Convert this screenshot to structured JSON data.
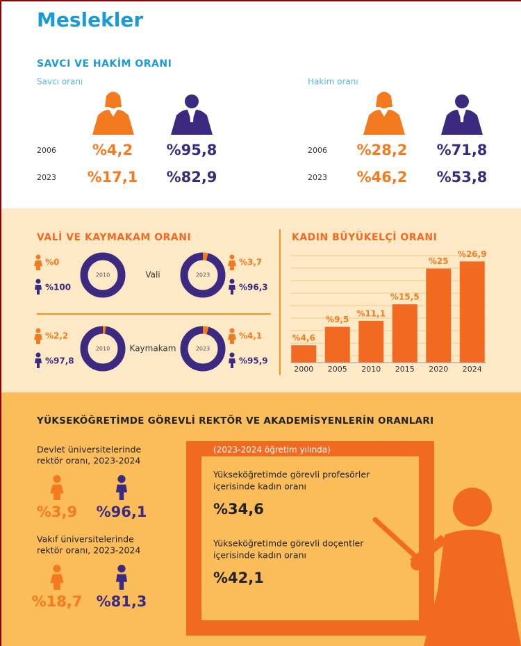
{
  "title": "Meslekler",
  "prosecutor_judge": {
    "heading": "SAVCI VE HAKİM ORANI",
    "panels": [
      {
        "label": "Savcı oranı",
        "rows": [
          {
            "year": "2006",
            "women": "%4,2",
            "men": "%95,8"
          },
          {
            "year": "2023",
            "women": "%17,1",
            "men": "%82,9"
          }
        ]
      },
      {
        "label": "Hakim oranı",
        "rows": [
          {
            "year": "2006",
            "women": "%28,2",
            "men": "%71,8"
          },
          {
            "year": "2023",
            "women": "%46,2",
            "men": "%53,8"
          }
        ]
      }
    ]
  },
  "governor": {
    "heading": "VALİ VE KAYMAKAM ORANI",
    "rows": [
      {
        "label": "Vali",
        "donuts": [
          {
            "year": "2010",
            "women": {
              "value": 0,
              "label": "%0"
            },
            "men": {
              "value": 100,
              "label": "%100"
            }
          },
          {
            "year": "2023",
            "women": {
              "value": 3.7,
              "label": "%3,7"
            },
            "men": {
              "value": 96.3,
              "label": "%96,3"
            }
          }
        ]
      },
      {
        "label": "Kaymakam",
        "donuts": [
          {
            "year": "2010",
            "women": {
              "value": 2.2,
              "label": "%2,2"
            },
            "men": {
              "value": 97.8,
              "label": "%97,8"
            }
          },
          {
            "year": "2023",
            "women": {
              "value": 4.1,
              "label": "%4,1"
            },
            "men": {
              "value": 95.9,
              "label": "%95,9"
            }
          }
        ]
      }
    ]
  },
  "chart_data": {
    "type": "bar",
    "title": "KADIN BÜYÜKELÇİ ORANI",
    "categories": [
      "2000",
      "2005",
      "2010",
      "2015",
      "2020",
      "2024"
    ],
    "values": [
      4.6,
      9.5,
      11.1,
      15.5,
      25,
      26.9
    ],
    "value_labels": [
      "%4,6",
      "%9,5",
      "%11,1",
      "%15,5",
      "%25",
      "%26,9"
    ],
    "color": "#f26a21",
    "ylim": [
      0,
      29
    ]
  },
  "higher_ed": {
    "heading": "YÜKSEKÖĞRETİMDE GÖREVLİ REKTÖR VE AKADEMİSYENLERİN ORANLARI",
    "rectors": [
      {
        "label": [
          "Devlet üniversitelerinde",
          "rektör oranı, 2023-2024"
        ],
        "women": "%3,9",
        "men": "%96,1"
      },
      {
        "label": [
          "Vakıf üniversitelerinde",
          "rektör oranı, 2023-2024"
        ],
        "women": "%18,7",
        "men": "%81,3"
      }
    ],
    "board": {
      "note": "(2023-2024 öğretim yılında)",
      "items": [
        {
          "label": [
            "Yükseköğretimde görevli profesörler",
            "içerisinde kadın oranı"
          ],
          "value": "%34,6"
        },
        {
          "label": [
            "Yükseköğretimde görevli doçentler",
            "içerisinde kadın oranı"
          ],
          "value": "%42,1"
        }
      ]
    }
  }
}
